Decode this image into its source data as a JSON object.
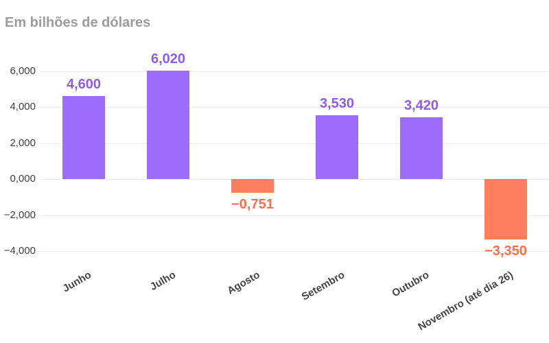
{
  "chart_data": {
    "type": "bar",
    "title": "Em bilhões de dólares",
    "categories": [
      "Junho",
      "Julho",
      "Agosto",
      "Setembro",
      "Outubro",
      "Novembro (até dia 26)"
    ],
    "values": [
      4.6,
      6.02,
      -0.751,
      3.53,
      3.42,
      -3.35
    ],
    "value_labels": [
      "4,600",
      "6,020",
      "−0,751",
      "3,530",
      "3,420",
      "−3,350"
    ],
    "y_ticks": [
      6,
      4,
      2,
      0,
      -2,
      -4
    ],
    "y_tick_labels": [
      "6,000",
      "4,000",
      "2,000",
      "0,000",
      "−2,000",
      "−4,000"
    ],
    "xlabel": "",
    "ylabel": "",
    "ylim": [
      -4.6,
      7.1
    ],
    "grid": true,
    "legend_position": "none",
    "x_label_rotation_deg": -30,
    "colors": {
      "positive_bar": "#9c6dfb",
      "negative_bar": "#fc7e5d",
      "positive_label": "#8d5ceb",
      "negative_label": "#f96e4c",
      "axis_text": "#3e3e3e",
      "grid": "#ececec",
      "title": "#9c9c9c"
    }
  }
}
